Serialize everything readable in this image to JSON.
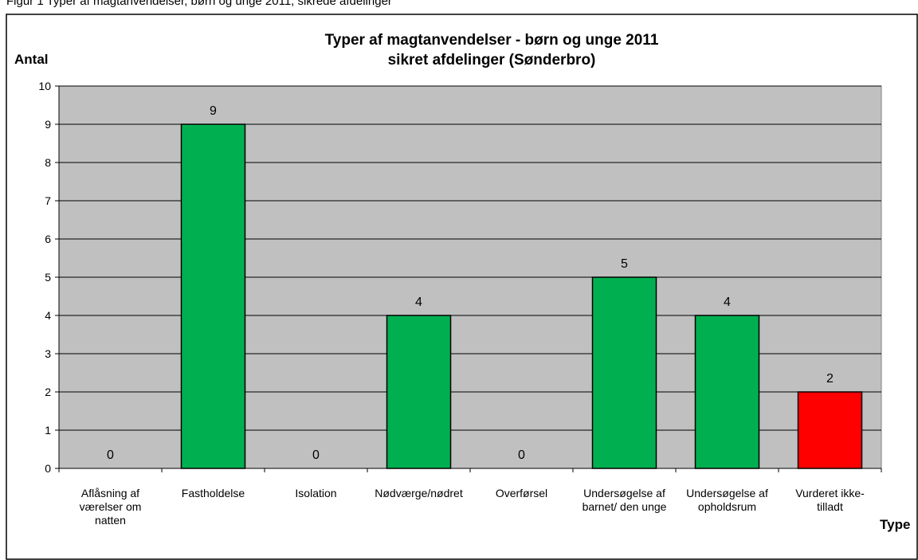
{
  "top_caption": "Figur 1 Typer af magtanvendelser, børn og unge 2011, sikrede afdelinger",
  "chart_data": {
    "type": "bar",
    "title": "Typer af magtanvendelser - børn og unge 2011",
    "subtitle": "sikret afdelinger (Sønderbro)",
    "ylabel": "Antal",
    "xlabel": "Type",
    "ylim": [
      0,
      10
    ],
    "yticks": [
      0,
      1,
      2,
      3,
      4,
      5,
      6,
      7,
      8,
      9,
      10
    ],
    "grid": true,
    "legend": "none",
    "categories": [
      "Aflåsning af værelser om natten",
      "Fastholdelse",
      "Isolation",
      "Nødværge/nødret",
      "Overførsel",
      "Undersøgelse af barnet/ den unge",
      "Undersøgelse af opholdsrum",
      "Vurderet ikke-tilladt"
    ],
    "category_lines": [
      [
        "Aflåsning af",
        "værelser om",
        "natten"
      ],
      [
        "Fastholdelse"
      ],
      [
        "Isolation"
      ],
      [
        "Nødværge/nødret"
      ],
      [
        "Overførsel"
      ],
      [
        "Undersøgelse af",
        "barnet/ den unge"
      ],
      [
        "Undersøgelse af",
        "opholdsrum"
      ],
      [
        "Vurderet ikke-",
        "tilladt"
      ]
    ],
    "values": [
      0,
      9,
      0,
      4,
      0,
      5,
      4,
      2
    ],
    "colors": [
      "#00B050",
      "#00B050",
      "#00B050",
      "#00B050",
      "#00B050",
      "#00B050",
      "#00B050",
      "#FF0000"
    ],
    "plot_bg": "#C0C0C0"
  }
}
